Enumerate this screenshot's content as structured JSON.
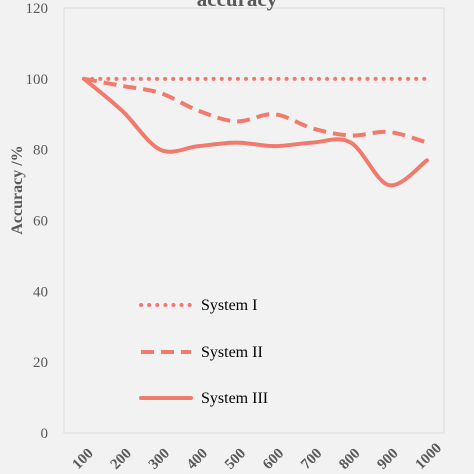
{
  "chart_data": {
    "type": "line",
    "title": "accuracy",
    "xlabel": "",
    "ylabel": "Accuracy /%",
    "ylim": [
      0,
      120
    ],
    "yticks": [
      "0",
      "20",
      "40",
      "60",
      "80",
      "100",
      "120"
    ],
    "x": [
      100,
      200,
      300,
      400,
      500,
      600,
      700,
      800,
      900,
      1000
    ],
    "xtick_labels": [
      "100",
      "200",
      "300",
      "400",
      "500",
      "600",
      "700",
      "800",
      "900",
      "1000"
    ],
    "grid": false,
    "legend_position": "bottom-left inside",
    "series": [
      {
        "name": "System I",
        "style": "dotted",
        "color": "#f07b6d",
        "values": [
          100,
          100,
          100,
          100,
          100,
          100,
          100,
          100,
          100,
          100
        ]
      },
      {
        "name": "System II",
        "style": "dashed",
        "color": "#f07b6d",
        "values": [
          100,
          98,
          96,
          91,
          88,
          90,
          86,
          84,
          85,
          82
        ]
      },
      {
        "name": "System III",
        "style": "solid",
        "color": "#f07b6d",
        "values": [
          100,
          91,
          80,
          81,
          82,
          81,
          82,
          82,
          70,
          77
        ]
      }
    ]
  }
}
